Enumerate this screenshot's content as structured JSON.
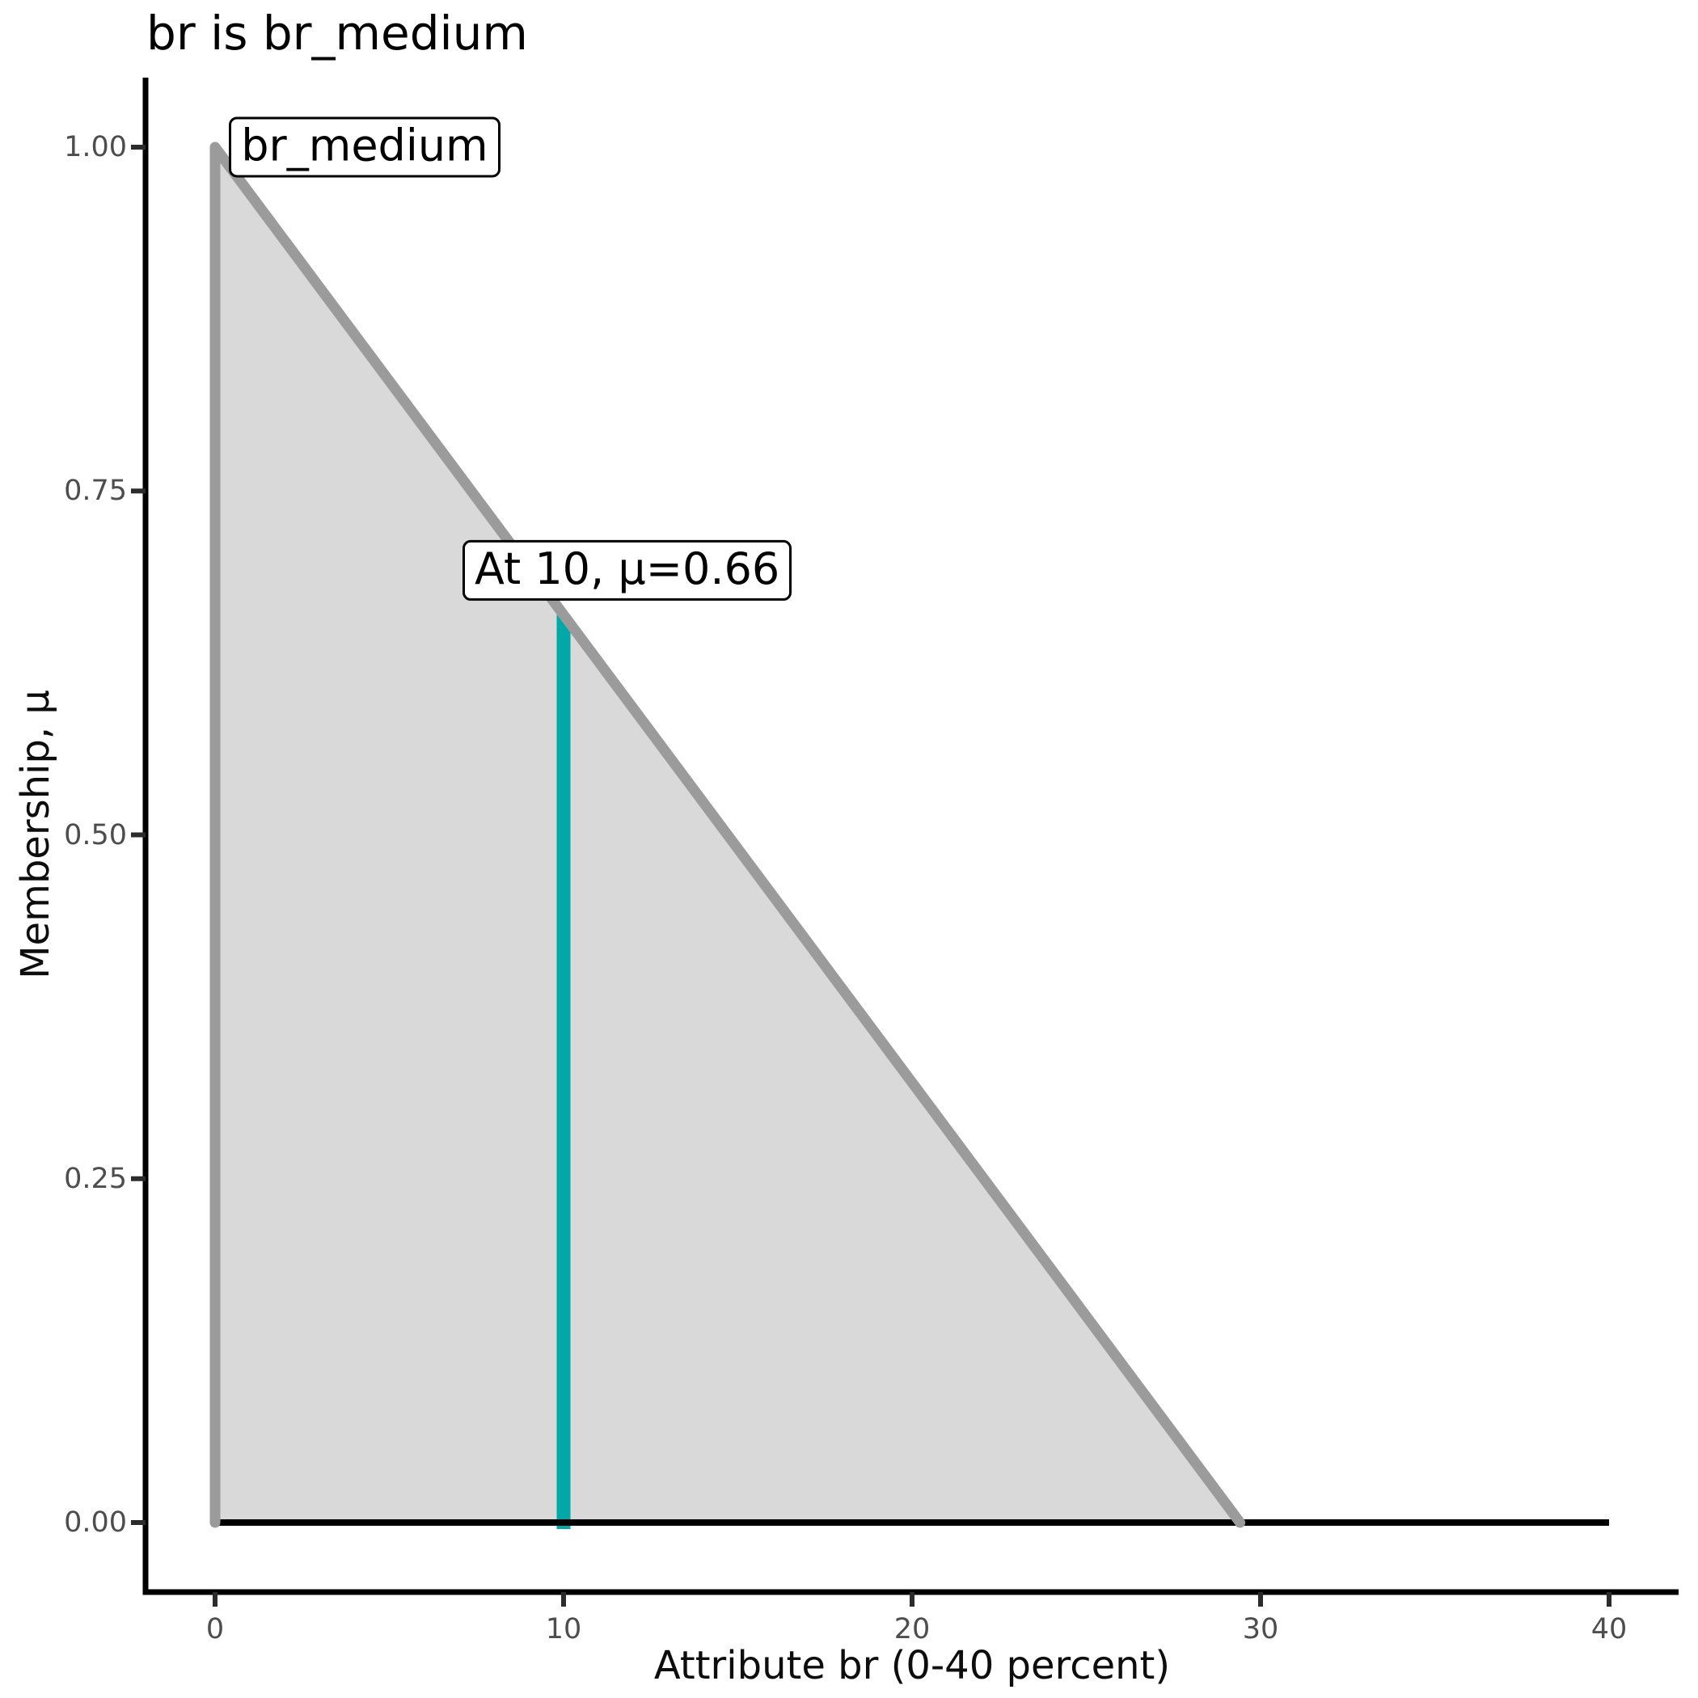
{
  "chart_data": {
    "type": "area",
    "title": "br is br_medium",
    "xlabel": "Attribute br (0-40 percent)",
    "ylabel": "Membership, μ",
    "xlim": [
      0,
      40
    ],
    "ylim": [
      0,
      1
    ],
    "grid": "off",
    "legend": "none",
    "x_ticks": [
      0,
      10,
      20,
      30,
      40
    ],
    "x_tick_labels": [
      "0",
      "10",
      "20",
      "30",
      "40"
    ],
    "y_ticks": [
      0,
      0.25,
      0.5,
      0.75,
      1
    ],
    "y_tick_labels": [
      "0.00",
      "0.25",
      "0.50",
      "0.75",
      "1.00"
    ],
    "membership_function": {
      "name": "br_medium",
      "shape": "triangle",
      "points_x": [
        0,
        0,
        29.41
      ],
      "points_mu": [
        0,
        1,
        0
      ]
    },
    "baseline": {
      "y": 0,
      "x_from": 0,
      "x_to": 40
    },
    "marker": {
      "x": 10,
      "mu": 0.66
    },
    "annotations": [
      {
        "text": "br_medium",
        "x": 0.4,
        "y": 1.0,
        "align": "left-center"
      },
      {
        "text": "At 10, μ=0.66",
        "x": 7.1,
        "y": 0.67,
        "align": "left-bottom"
      }
    ],
    "colors": {
      "area_fill": "#D9D9D9",
      "area_outline": "#9B9B9B",
      "marker_line": "#00A8A8",
      "axis_line": "#000000",
      "baseline_line": "#000000",
      "tick_mark": "#2B2B2B",
      "tick_text": "#4D4D4D",
      "title_text": "#000000",
      "label_box_bg": "#FFFFFF",
      "label_box_border": "#000000",
      "background": "#FFFFFF"
    }
  }
}
